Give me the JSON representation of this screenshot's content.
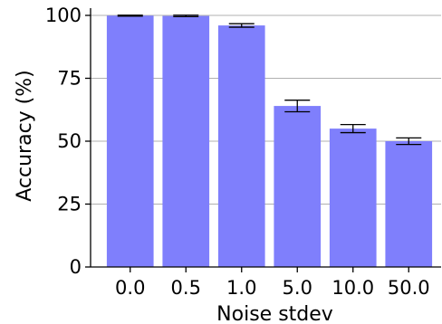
{
  "chart_data": {
    "type": "bar",
    "title": "",
    "xlabel": "Noise stdev",
    "ylabel": "Accuracy (%)",
    "categories": [
      "0.0",
      "0.5",
      "1.0",
      "5.0",
      "10.0",
      "50.0"
    ],
    "values": [
      99.9,
      99.8,
      96.0,
      64.0,
      55.0,
      50.0
    ],
    "errors": [
      0.2,
      0.3,
      0.7,
      2.3,
      1.6,
      1.3
    ],
    "ylim": [
      0,
      100
    ],
    "yticks": [
      "0",
      "25",
      "50",
      "75",
      "100"
    ],
    "grid": "horizontal",
    "bar_color": "#7f7ffc",
    "error_color": "#000000",
    "grid_color": "#b0b0b0"
  }
}
